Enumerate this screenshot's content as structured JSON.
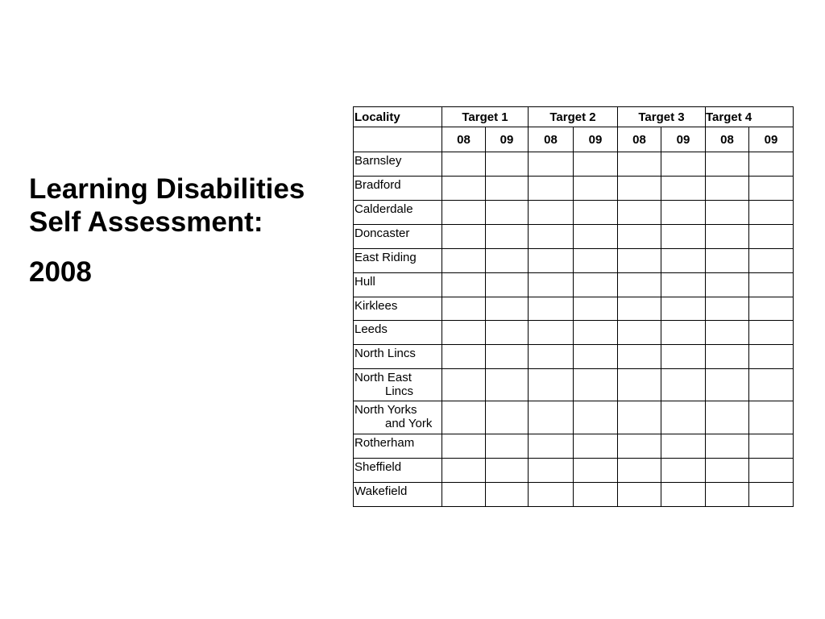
{
  "title": {
    "line1": "Learning Disabilities",
    "line2": "Self Assessment:",
    "year": "2008"
  },
  "table": {
    "locality_header": "Locality",
    "target_headers": [
      "Target 1",
      "Target 2",
      "Target 3",
      "Target 4"
    ],
    "year_labels": [
      "08",
      "09",
      "08",
      "09",
      "08",
      "09",
      "08",
      "09"
    ],
    "colors": {
      "G": "#008000",
      "O": "#ff9900",
      "R": "#ff0000",
      "W": "#ffffff"
    },
    "rows": [
      {
        "locality": [
          "Barnsley"
        ],
        "cells": [
          [
            "G"
          ],
          [
            "W"
          ],
          [
            "O"
          ],
          [
            "W"
          ],
          [
            "O",
            "G"
          ],
          [
            "W",
            "W"
          ],
          [
            "G"
          ],
          [
            "W"
          ]
        ]
      },
      {
        "locality": [
          "Bradford"
        ],
        "cells": [
          [
            "O"
          ],
          [
            "W"
          ],
          [
            "O"
          ],
          [
            "W"
          ],
          [
            "O"
          ],
          [
            "W"
          ],
          [
            "G"
          ],
          [
            "W"
          ]
        ]
      },
      {
        "locality": [
          "Calderdale"
        ],
        "cells": [
          [
            "G"
          ],
          [
            "W"
          ],
          [
            "R"
          ],
          [
            "W"
          ],
          [
            "G"
          ],
          [
            "W"
          ],
          [
            "R",
            "O"
          ],
          [
            "W"
          ]
        ]
      },
      {
        "locality": [
          "Doncaster"
        ],
        "cells": [
          [
            "G"
          ],
          [
            "W"
          ],
          [
            "R",
            "O"
          ],
          [
            "W"
          ],
          [
            "R",
            "O"
          ],
          [
            "W"
          ],
          [
            "O"
          ],
          [
            "W"
          ]
        ]
      },
      {
        "locality": [
          "East Riding"
        ],
        "cells": [
          [
            "O"
          ],
          [
            "W"
          ],
          [
            "O"
          ],
          [
            "W"
          ],
          [
            "O"
          ],
          [
            "W",
            "W"
          ],
          [
            "O"
          ],
          [
            "W"
          ]
        ]
      },
      {
        "locality": [
          "Hull"
        ],
        "cells": [
          [
            "O",
            "G"
          ],
          [
            "W",
            "W"
          ],
          [
            "O"
          ],
          [
            "W"
          ],
          [
            "O"
          ],
          [
            "W",
            "W"
          ],
          [
            "O"
          ],
          [
            "W"
          ]
        ]
      },
      {
        "locality": [
          "Kirklees"
        ],
        "cells": [
          [
            "G"
          ],
          [
            "W"
          ],
          [
            "O"
          ],
          [
            "W"
          ],
          [
            "O"
          ],
          [
            "W",
            "W"
          ],
          [
            "O"
          ],
          [
            "W"
          ]
        ]
      },
      {
        "locality": [
          "Leeds"
        ],
        "cells": [
          [
            "G"
          ],
          [
            "W"
          ],
          [
            "R"
          ],
          [
            "W"
          ],
          [
            "O"
          ],
          [
            "W"
          ],
          [
            "R",
            "O"
          ],
          [
            "W"
          ]
        ]
      },
      {
        "locality": [
          "North Lincs"
        ],
        "cells": [
          [
            "G"
          ],
          [
            "W"
          ],
          [
            "R"
          ],
          [
            "W",
            "W"
          ],
          [
            "O",
            "G"
          ],
          [
            "W",
            "W"
          ],
          [
            "O"
          ],
          [
            "W"
          ]
        ]
      },
      {
        "locality": [
          "North East",
          "Lincs"
        ],
        "cells": [
          [
            "G"
          ],
          [
            "W"
          ],
          [
            "O"
          ],
          [
            "W"
          ],
          [
            "G"
          ],
          [
            "W",
            "W"
          ],
          [
            "O",
            "G"
          ],
          [
            "W",
            "W"
          ]
        ]
      },
      {
        "locality": [
          "North Yorks",
          "and York"
        ],
        "cells": [
          [
            "G"
          ],
          [
            "W"
          ],
          [
            "O"
          ],
          [
            "W",
            "W"
          ],
          [
            "O"
          ],
          [
            "W"
          ],
          [
            "O"
          ],
          [
            "W"
          ]
        ]
      },
      {
        "locality": [
          "Rotherham"
        ],
        "cells": [
          [
            "G"
          ],
          [
            "W"
          ],
          [
            "R"
          ],
          [
            "W",
            "W"
          ],
          [
            "G"
          ],
          [
            "W"
          ],
          [
            "O"
          ],
          [
            "W",
            "W"
          ]
        ]
      },
      {
        "locality": [
          "Sheffield"
        ],
        "cells": [
          [
            "O"
          ],
          [
            "W"
          ],
          [
            "O"
          ],
          [
            "W",
            "W"
          ],
          [
            "O"
          ],
          [
            "W"
          ],
          [
            "O"
          ],
          [
            "W"
          ]
        ]
      },
      {
        "locality": [
          "Wakefield"
        ],
        "cells": [
          [
            "G"
          ],
          [
            "W"
          ],
          [
            "O"
          ],
          [
            "W"
          ],
          [
            "G"
          ],
          [
            "W"
          ],
          [
            "O",
            "G"
          ],
          [
            "W",
            "W"
          ]
        ]
      }
    ]
  }
}
